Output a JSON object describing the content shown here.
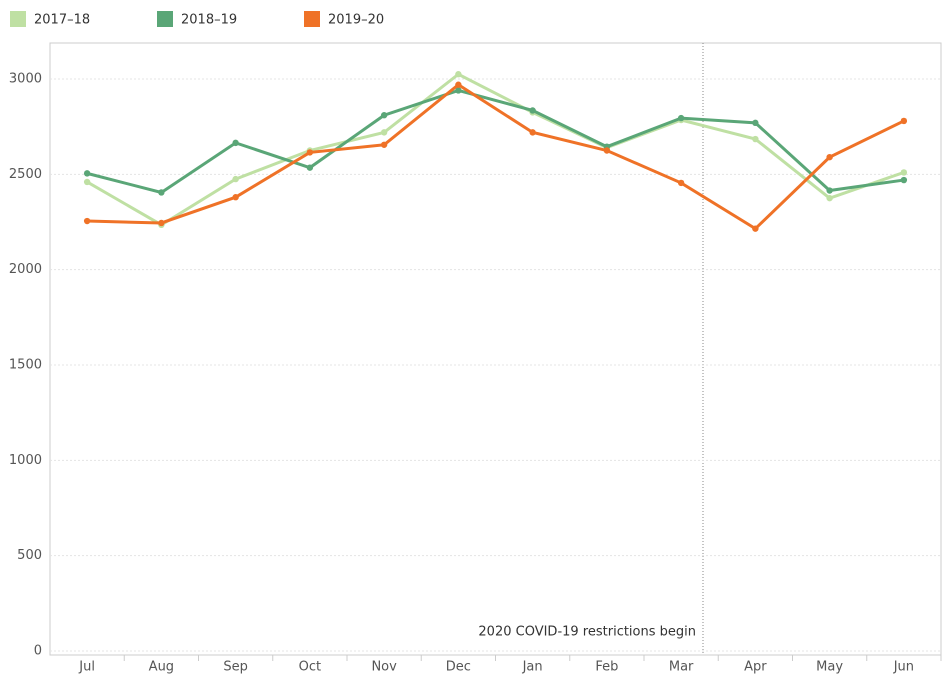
{
  "chart_data": {
    "type": "line",
    "categories": [
      "Jul",
      "Aug",
      "Sep",
      "Oct",
      "Nov",
      "Dec",
      "Jan",
      "Feb",
      "Mar",
      "Apr",
      "May",
      "Jun"
    ],
    "series": [
      {
        "name": "2017–18",
        "color": "#bfe0a3",
        "values": [
          2460,
          2235,
          2475,
          2625,
          2720,
          3025,
          2825,
          2640,
          2785,
          2685,
          2375,
          2510
        ]
      },
      {
        "name": "2018–19",
        "color": "#5aa677",
        "values": [
          2505,
          2405,
          2665,
          2535,
          2810,
          2940,
          2835,
          2645,
          2795,
          2770,
          2415,
          2470
        ]
      },
      {
        "name": "2019–20",
        "color": "#ef7227",
        "values": [
          2255,
          2245,
          2380,
          2615,
          2655,
          2970,
          2720,
          2625,
          2455,
          2215,
          2590,
          2780
        ]
      }
    ],
    "ylim": [
      0,
      3000
    ],
    "yticks": [
      0,
      500,
      1000,
      1500,
      2000,
      2500,
      3000
    ],
    "grid": true,
    "annotation": "2020 COVID-19 restrictions begin"
  }
}
